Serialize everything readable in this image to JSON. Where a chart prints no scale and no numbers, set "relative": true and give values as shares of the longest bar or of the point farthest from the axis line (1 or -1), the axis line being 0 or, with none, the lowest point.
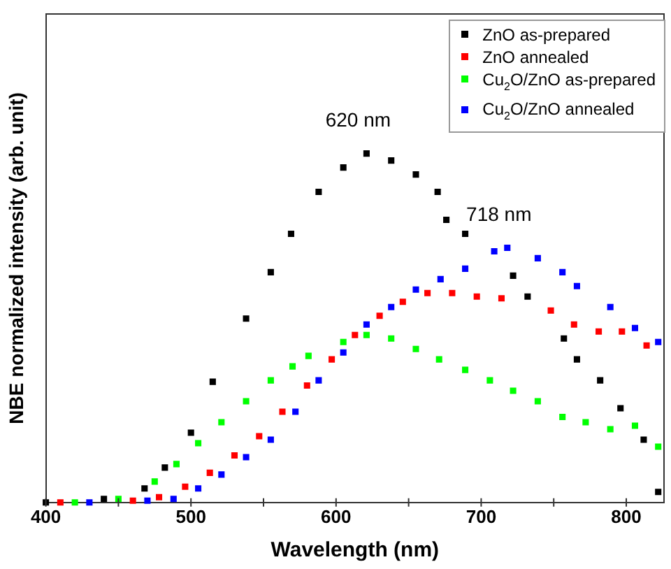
{
  "chart_data": {
    "type": "scatter",
    "relative": true,
    "xlabel": "Wavelength (nm)",
    "ylabel": "NBE normalized intensity (arb. unit)",
    "xlim": [
      400,
      826
    ],
    "xticks": [
      400,
      {
        "value": 450,
        "label": null
      },
      500,
      {
        "value": 550,
        "label": null
      },
      600,
      {
        "value": 650,
        "label": null
      },
      700,
      {
        "value": 750,
        "label": null
      },
      800
    ],
    "legend": "top right",
    "marker": "square",
    "grid": false,
    "annotations": [
      {
        "text": "620 nm",
        "x": 621,
        "y": 1
      },
      {
        "text": "718 nm",
        "x": 718,
        "y": 0.73
      }
    ],
    "series": [
      {
        "name": "ZnO as-prepared",
        "color": "#000000",
        "x": [
          400,
          440,
          468,
          482,
          500,
          515,
          538,
          555,
          569,
          588,
          605,
          621,
          638,
          655,
          670,
          676,
          689,
          722,
          732,
          757,
          766,
          782,
          796,
          812,
          822
        ],
        "values": [
          0,
          0.01,
          0.04,
          0.1,
          0.2,
          0.346,
          0.527,
          0.66,
          0.77,
          0.89,
          0.96,
          1,
          0.98,
          0.94,
          0.89,
          0.81,
          0.77,
          0.65,
          0.59,
          0.47,
          0.41,
          0.35,
          0.27,
          0.18,
          0.03
        ]
      },
      {
        "name": "ZnO annealed",
        "color": "#ff0000",
        "x": [
          410,
          460,
          478,
          496,
          513,
          530,
          547,
          563,
          580,
          597,
          613,
          630,
          646,
          663,
          680,
          697,
          714,
          748,
          764,
          781,
          797,
          814
        ],
        "values": [
          0,
          0.005,
          0.015,
          0.045,
          0.085,
          0.135,
          0.19,
          0.26,
          0.335,
          0.41,
          0.48,
          0.535,
          0.575,
          0.6,
          0.6,
          0.59,
          0.585,
          0.55,
          0.51,
          0.49,
          0.49,
          0.45
        ]
      },
      {
        "name": "Cu$_{2}$O/ZnO as-prepared",
        "color": "#00ff00",
        "x": [
          420,
          450,
          475,
          490,
          505,
          521,
          538,
          555,
          570,
          581,
          605,
          621,
          638,
          655,
          671,
          689,
          706,
          722,
          739,
          756,
          772,
          789,
          806,
          822
        ],
        "values": [
          0,
          0.01,
          0.06,
          0.11,
          0.17,
          0.23,
          0.29,
          0.35,
          0.39,
          0.42,
          0.46,
          0.48,
          0.47,
          0.44,
          0.41,
          0.38,
          0.35,
          0.32,
          0.29,
          0.245,
          0.23,
          0.21,
          0.22,
          0.16
        ]
      },
      {
        "name": "Cu$_{2}$O/ZnO annealed",
        "color": "#0000ff",
        "x": [
          430,
          470,
          488,
          505,
          521,
          538,
          555,
          572,
          588,
          605,
          621,
          638,
          655,
          672,
          689,
          709,
          718,
          739,
          756,
          766,
          789,
          806,
          822
        ],
        "values": [
          0,
          0.005,
          0.01,
          0.04,
          0.08,
          0.13,
          0.18,
          0.26,
          0.35,
          0.43,
          0.51,
          0.56,
          0.61,
          0.64,
          0.67,
          0.72,
          0.73,
          0.7,
          0.66,
          0.62,
          0.56,
          0.5,
          0.46
        ]
      }
    ]
  }
}
